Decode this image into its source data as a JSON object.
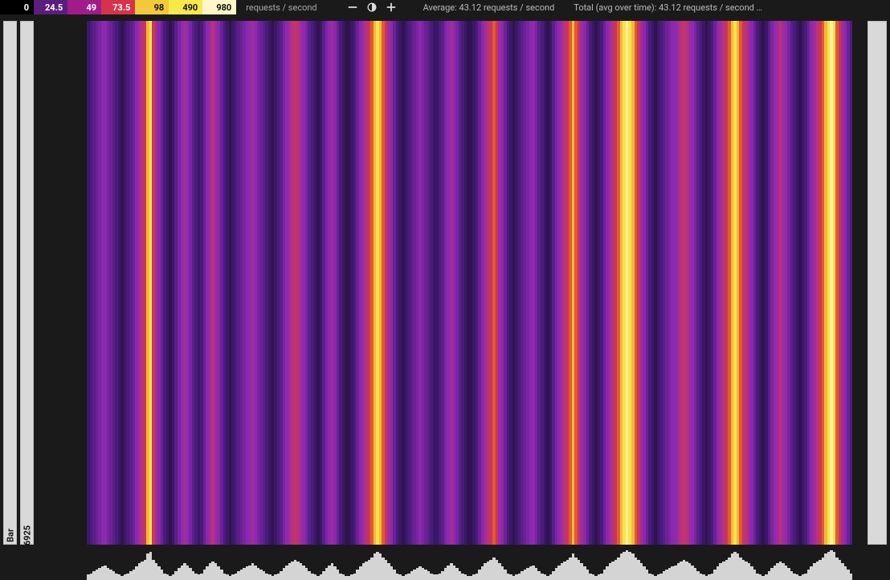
{
  "legend": {
    "items": [
      {
        "value": "0",
        "bg": "#000000",
        "fg": "#ffffff"
      },
      {
        "value": "24.5",
        "bg": "#5a1f7a",
        "fg": "#ffffff"
      },
      {
        "value": "49",
        "bg": "#a01c8a",
        "fg": "#ffffff"
      },
      {
        "value": "73.5",
        "bg": "#d6334a",
        "fg": "#ffffff"
      },
      {
        "value": "98",
        "bg": "#f2c93a",
        "fg": "#111111"
      },
      {
        "value": "490",
        "bg": "#f7e94a",
        "fg": "#111111"
      },
      {
        "value": "980",
        "bg": "#fcf6c8",
        "fg": "#111111"
      }
    ],
    "unit": "requests / second"
  },
  "controls": {
    "zoom_out": "−",
    "zoom_in": "+"
  },
  "stats": {
    "average_label": "Average: 43.12 requests / second",
    "total_label": "Total (avg over time): 43.12 requests / second …"
  },
  "rails": {
    "left1_label": "Bar",
    "left2_label": "6925"
  },
  "heatmap": {
    "type": "heatmap-stripes",
    "palette_note": "0→black, low→deep violet, mid→magenta/crimson, high→orange/yellow, peak→pale yellow",
    "column_colors": [
      "#3a1866",
      "#4a1c7a",
      "#5b1f88",
      "#6a2296",
      "#7a25a2",
      "#8a28ae",
      "#8f2ab0",
      "#7a25a2",
      "#6a2296",
      "#5b1f88",
      "#4a1c7a",
      "#3a1866",
      "#2f134f",
      "#3a1866",
      "#4a1c7a",
      "#5b1f88",
      "#6a2296",
      "#8a28ae",
      "#a12d9b",
      "#b8327f",
      "#c93659",
      "#f2b93a",
      "#f7e34a",
      "#c93659",
      "#a12d9b",
      "#8a28ae",
      "#6a2296",
      "#4a1c7a",
      "#3a1866",
      "#2f134f",
      "#3a1866",
      "#5b1f88",
      "#7a25a2",
      "#8f2ab0",
      "#a12d9b",
      "#8f2ab0",
      "#7a25a2",
      "#5b1f88",
      "#4a1c7a",
      "#3a1866",
      "#4a1c7a",
      "#6a2296",
      "#8a28ae",
      "#a12d9b",
      "#b8327f",
      "#a12d9b",
      "#8a28ae",
      "#6a2296",
      "#4a1c7a",
      "#3a1866",
      "#2f134f",
      "#3a1866",
      "#4a1c7a",
      "#5b1f88",
      "#6a2296",
      "#7a25a2",
      "#8a28ae",
      "#8f2ab0",
      "#a12d9b",
      "#8f2ab0",
      "#7a25a2",
      "#6a2296",
      "#5b1f88",
      "#4a1c7a",
      "#3a1866",
      "#2f134f",
      "#3a1866",
      "#4a1c7a",
      "#5b1f88",
      "#7a25a2",
      "#8f2ab0",
      "#a12d9b",
      "#b8327f",
      "#c93659",
      "#b8327f",
      "#a12d9b",
      "#8f2ab0",
      "#7a25a2",
      "#5b1f88",
      "#4a1c7a",
      "#3a1866",
      "#2f134f",
      "#3a1866",
      "#5b1f88",
      "#7a25a2",
      "#8f2ab0",
      "#a12d9b",
      "#8a28ae",
      "#6a2296",
      "#4a1c7a",
      "#3a1866",
      "#2f134f",
      "#2f134f",
      "#3a1866",
      "#4a1c7a",
      "#6a2296",
      "#8a28ae",
      "#a12d9b",
      "#b8327f",
      "#c93659",
      "#e05a32",
      "#f2b93a",
      "#f7e34a",
      "#f2b93a",
      "#e05a32",
      "#c93659",
      "#a12d9b",
      "#8a28ae",
      "#6a2296",
      "#4a1c7a",
      "#3a1866",
      "#2f134f",
      "#3a1866",
      "#4a1c7a",
      "#5b1f88",
      "#6a2296",
      "#7a25a2",
      "#8a28ae",
      "#7a25a2",
      "#6a2296",
      "#5b1f88",
      "#4a1c7a",
      "#3a1866",
      "#3a1866",
      "#4a1c7a",
      "#5b1f88",
      "#7a25a2",
      "#8f2ab0",
      "#a12d9b",
      "#8f2ab0",
      "#7a25a2",
      "#5b1f88",
      "#4a1c7a",
      "#3a1866",
      "#2f134f",
      "#2f134f",
      "#3a1866",
      "#4a1c7a",
      "#6a2296",
      "#8a28ae",
      "#a12d9b",
      "#b8327f",
      "#c93659",
      "#e05a32",
      "#c93659",
      "#a12d9b",
      "#8a28ae",
      "#6a2296",
      "#4a1c7a",
      "#3a1866",
      "#2f134f",
      "#3a1866",
      "#4a1c7a",
      "#5b1f88",
      "#6a2296",
      "#7a25a2",
      "#8a28ae",
      "#8f2ab0",
      "#7a25a2",
      "#5b1f88",
      "#4a1c7a",
      "#3a1866",
      "#2f134f",
      "#3a1866",
      "#5b1f88",
      "#7a25a2",
      "#8f2ab0",
      "#a12d9b",
      "#b8327f",
      "#c93659",
      "#e05a32",
      "#f2b93a",
      "#e05a32",
      "#c93659",
      "#a12d9b",
      "#8a28ae",
      "#6a2296",
      "#4a1c7a",
      "#3a1866",
      "#2f134f",
      "#3a1866",
      "#4a1c7a",
      "#6a2296",
      "#8a28ae",
      "#a12d9b",
      "#b8327f",
      "#c93659",
      "#e05a32",
      "#f2b93a",
      "#f7e34a",
      "#fcf0a0",
      "#f7e34a",
      "#f2b93a",
      "#e05a32",
      "#c93659",
      "#a12d9b",
      "#8a28ae",
      "#6a2296",
      "#4a1c7a",
      "#3a1866",
      "#2f134f",
      "#3a1866",
      "#4a1c7a",
      "#5b1f88",
      "#6a2296",
      "#7a25a2",
      "#8a28ae",
      "#8f2ab0",
      "#a12d9b",
      "#b8327f",
      "#c93659",
      "#b8327f",
      "#a12d9b",
      "#8f2ab0",
      "#7a25a2",
      "#5b1f88",
      "#4a1c7a",
      "#3a1866",
      "#2f134f",
      "#3a1866",
      "#4a1c7a",
      "#6a2296",
      "#8a28ae",
      "#a12d9b",
      "#b8327f",
      "#c93659",
      "#e05a32",
      "#f2b93a",
      "#f7e34a",
      "#f2b93a",
      "#e05a32",
      "#c93659",
      "#b8327f",
      "#a12d9b",
      "#8a28ae",
      "#6a2296",
      "#4a1c7a",
      "#3a1866",
      "#2f134f",
      "#3a1866",
      "#5b1f88",
      "#7a25a2",
      "#8f2ab0",
      "#a12d9b",
      "#b8327f",
      "#a12d9b",
      "#8f2ab0",
      "#7a25a2",
      "#5b1f88",
      "#4a1c7a",
      "#3a1866",
      "#2f134f",
      "#3a1866",
      "#4a1c7a",
      "#6a2296",
      "#8a28ae",
      "#a12d9b",
      "#b8327f",
      "#c93659",
      "#e05a32",
      "#f2b93a",
      "#f7e34a",
      "#fcf0a0",
      "#f7e34a",
      "#e05a32",
      "#c93659",
      "#a12d9b",
      "#8a28ae",
      "#6a2296",
      "#4a1c7a"
    ]
  },
  "sparkline": {
    "type": "bar",
    "bar_color": "#d4d4d4",
    "heights_pct": [
      18,
      22,
      28,
      34,
      40,
      46,
      48,
      40,
      34,
      28,
      22,
      18,
      14,
      18,
      22,
      28,
      34,
      46,
      55,
      60,
      66,
      86,
      92,
      66,
      55,
      46,
      34,
      22,
      18,
      14,
      18,
      28,
      40,
      48,
      55,
      48,
      40,
      28,
      22,
      18,
      22,
      34,
      46,
      55,
      60,
      55,
      46,
      34,
      22,
      18,
      14,
      18,
      22,
      28,
      34,
      40,
      46,
      48,
      55,
      48,
      40,
      34,
      28,
      22,
      18,
      14,
      18,
      22,
      28,
      40,
      48,
      55,
      60,
      66,
      60,
      55,
      48,
      40,
      28,
      22,
      18,
      14,
      18,
      28,
      40,
      48,
      55,
      46,
      34,
      22,
      18,
      14,
      14,
      18,
      22,
      34,
      46,
      55,
      60,
      66,
      74,
      86,
      92,
      86,
      74,
      66,
      55,
      46,
      34,
      22,
      18,
      14,
      18,
      22,
      28,
      34,
      40,
      46,
      40,
      34,
      28,
      22,
      18,
      18,
      22,
      28,
      40,
      48,
      55,
      48,
      40,
      28,
      22,
      18,
      14,
      14,
      18,
      22,
      34,
      46,
      55,
      60,
      66,
      74,
      66,
      55,
      46,
      34,
      22,
      18,
      14,
      18,
      22,
      28,
      34,
      40,
      46,
      48,
      40,
      28,
      22,
      18,
      14,
      18,
      28,
      40,
      48,
      55,
      60,
      66,
      74,
      86,
      74,
      66,
      55,
      46,
      34,
      22,
      18,
      14,
      18,
      22,
      34,
      46,
      55,
      60,
      66,
      74,
      86,
      92,
      98,
      92,
      86,
      74,
      66,
      55,
      46,
      34,
      22,
      18,
      14,
      18,
      22,
      28,
      34,
      40,
      46,
      48,
      55,
      60,
      66,
      60,
      55,
      48,
      40,
      28,
      22,
      18,
      14,
      18,
      22,
      34,
      46,
      55,
      60,
      66,
      74,
      86,
      92,
      86,
      74,
      66,
      60,
      55,
      46,
      34,
      22,
      18,
      14,
      18,
      28,
      40,
      48,
      55,
      60,
      55,
      48,
      40,
      28,
      22,
      18,
      14,
      18,
      22,
      34,
      46,
      55,
      60,
      66,
      74,
      86,
      92,
      98,
      92,
      74,
      66,
      55,
      46,
      34,
      22
    ]
  }
}
